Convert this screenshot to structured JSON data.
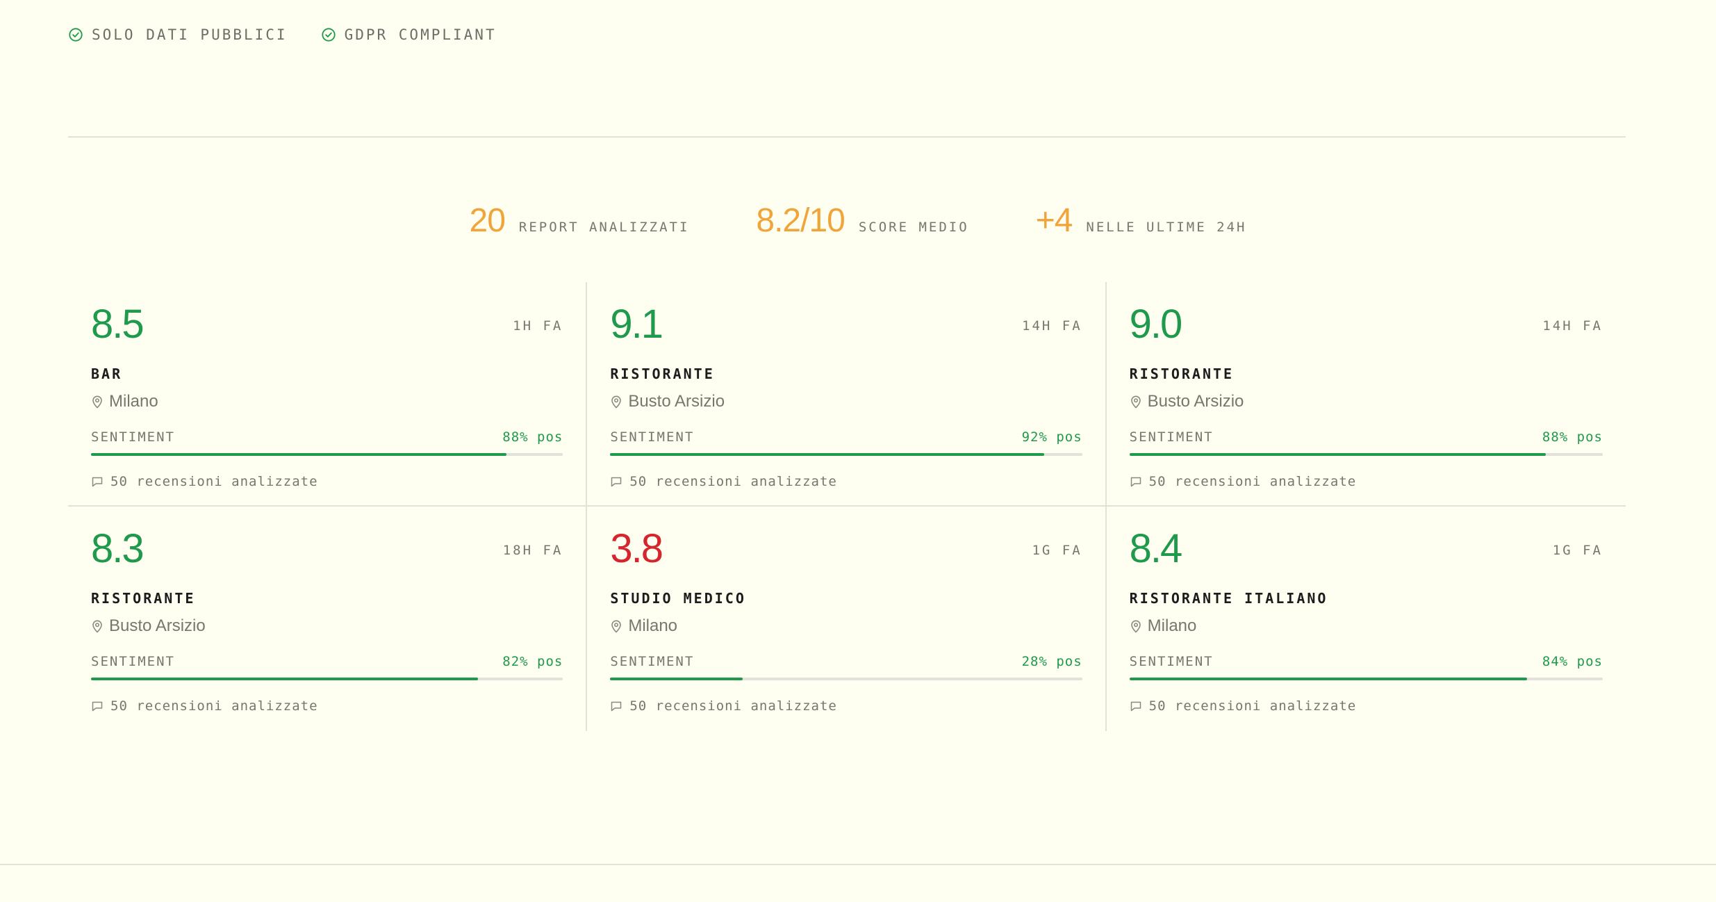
{
  "badges": [
    {
      "icon": "check-circle-icon",
      "label": "SOLO DATI PUBBLICI"
    },
    {
      "icon": "check-circle-icon",
      "label": "GDPR COMPLIANT"
    }
  ],
  "stats": [
    {
      "value": "20",
      "label": "REPORT ANALIZZATI"
    },
    {
      "value": "8.2/10",
      "label": "SCORE MEDIO"
    },
    {
      "value": "+4",
      "label": "NELLE ULTIME 24H"
    }
  ],
  "colors": {
    "accent": "#f0a53a",
    "good": "#1f9a4d",
    "bad": "#d5252d",
    "background": "#fefef1"
  },
  "sentiment_label": "SENTIMENT",
  "cards": [
    {
      "score": "8.5",
      "age": "1H FA",
      "category": "BAR",
      "location": "Milano",
      "sentiment": "88% pos",
      "sentiment_fraction": 0.88,
      "reviews": "50 recensioni analizzate",
      "rating": "good"
    },
    {
      "score": "9.1",
      "age": "14H FA",
      "category": "RISTORANTE",
      "location": "Busto Arsizio",
      "sentiment": "92% pos",
      "sentiment_fraction": 0.92,
      "reviews": "50 recensioni analizzate",
      "rating": "good"
    },
    {
      "score": "9.0",
      "age": "14H FA",
      "category": "RISTORANTE",
      "location": "Busto Arsizio",
      "sentiment": "88% pos",
      "sentiment_fraction": 0.88,
      "reviews": "50 recensioni analizzate",
      "rating": "good"
    },
    {
      "score": "8.3",
      "age": "18H FA",
      "category": "RISTORANTE",
      "location": "Busto Arsizio",
      "sentiment": "82% pos",
      "sentiment_fraction": 0.82,
      "reviews": "50 recensioni analizzate",
      "rating": "good"
    },
    {
      "score": "3.8",
      "age": "1G FA",
      "category": "STUDIO MEDICO",
      "location": "Milano",
      "sentiment": "28% pos",
      "sentiment_fraction": 0.28,
      "reviews": "50 recensioni analizzate",
      "rating": "bad"
    },
    {
      "score": "8.4",
      "age": "1G FA",
      "category": "RISTORANTE ITALIANO",
      "location": "Milano",
      "sentiment": "84% pos",
      "sentiment_fraction": 0.84,
      "reviews": "50 recensioni analizzate",
      "rating": "good"
    }
  ]
}
